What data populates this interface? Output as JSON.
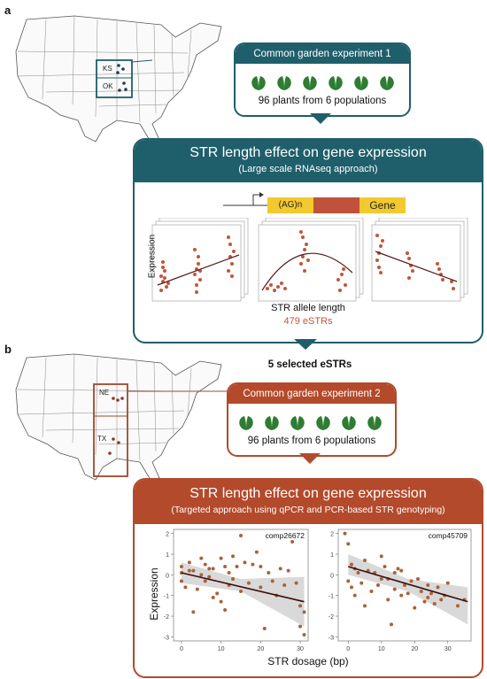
{
  "panels": {
    "a": "a",
    "b": "b"
  },
  "map_a": {
    "labels": [
      "KS",
      "OK"
    ]
  },
  "map_b": {
    "labels": [
      "NE",
      "TX"
    ]
  },
  "exp1": {
    "title": "Common garden experiment 1",
    "caption": "96 plants from 6 populations"
  },
  "rnaseq": {
    "title": "STR length effect on gene expression",
    "subtitle": "(Large scale RNAseq approach)",
    "gene_region_label": "(AG)n",
    "gene_label": "Gene",
    "ylabel": "Expression",
    "xlabel": "STR allele length",
    "count": "479 eSTRs"
  },
  "selected": "5 selected eSTRs",
  "exp2": {
    "title": "Common garden experiment 2",
    "caption": "96 plants from 6 populations"
  },
  "qpcr": {
    "title": "STR length effect on gene expression",
    "subtitle": "(Targeted approach using qPCR and PCR-based STR genotyping)",
    "ylabel": "Expression",
    "xlabel": "STR dosage (bp)"
  },
  "chart_data": [
    {
      "type": "scatter",
      "title": "comp26672",
      "xlabel": "STR dosage (bp)",
      "ylabel": "Expression",
      "xlim": [
        -2,
        32
      ],
      "ylim": [
        -3.2,
        2.2
      ],
      "x_ticks": [
        0,
        10,
        20,
        30
      ],
      "y_ticks": [
        2,
        1,
        0,
        -1,
        -2,
        -3
      ],
      "trend": [
        [
          0,
          0.1
        ],
        [
          31,
          -1.3
        ]
      ],
      "ribbon": [
        [
          0,
          0.6,
          -0.4
        ],
        [
          15,
          -0.2,
          -0.8
        ],
        [
          31,
          -0.1,
          -2.5
        ]
      ],
      "points": [
        [
          0,
          0.1
        ],
        [
          0,
          -0.3
        ],
        [
          0,
          0.4
        ],
        [
          1,
          -0.6
        ],
        [
          2,
          0.6
        ],
        [
          2,
          0.2
        ],
        [
          3,
          -1.8
        ],
        [
          3,
          0.2
        ],
        [
          4,
          -0.7
        ],
        [
          5,
          0.8
        ],
        [
          5,
          0
        ],
        [
          6,
          0.5
        ],
        [
          6,
          -0.3
        ],
        [
          7,
          -0.1
        ],
        [
          7,
          0.3
        ],
        [
          8,
          -1.1
        ],
        [
          8,
          0.3
        ],
        [
          9,
          -0.9
        ],
        [
          10,
          0.8
        ],
        [
          10,
          -1.3
        ],
        [
          11,
          0.4
        ],
        [
          11,
          -1.7
        ],
        [
          12,
          0.1
        ],
        [
          12,
          -0.5
        ],
        [
          13,
          0.9
        ],
        [
          13,
          -0.2
        ],
        [
          14,
          0.4
        ],
        [
          15,
          1.9
        ],
        [
          15,
          -0.8
        ],
        [
          16,
          0.6
        ],
        [
          17,
          -0.4
        ],
        [
          18,
          0.5
        ],
        [
          19,
          1.1
        ],
        [
          20,
          -0.6
        ],
        [
          20,
          0.4
        ],
        [
          21,
          -2.6
        ],
        [
          22,
          0.1
        ],
        [
          23,
          -0.3
        ],
        [
          24,
          -1
        ],
        [
          25,
          0.3
        ],
        [
          26,
          -0.5
        ],
        [
          27,
          0.2
        ],
        [
          28,
          1.6
        ],
        [
          29,
          -0.4
        ],
        [
          30,
          -1.5
        ],
        [
          30,
          -2.5
        ],
        [
          31,
          -1.8
        ],
        [
          31,
          -2.9
        ]
      ]
    },
    {
      "type": "scatter",
      "title": "comp45709",
      "xlabel": "STR dosage (bp)",
      "ylabel": "",
      "xlim": [
        -3,
        37
      ],
      "ylim": [
        -3.2,
        2.2
      ],
      "x_ticks": [
        0,
        10,
        20,
        30
      ],
      "y_ticks": [
        2,
        1,
        0,
        -1,
        -2,
        -3
      ],
      "trend": [
        [
          0,
          0.4
        ],
        [
          36,
          -1.3
        ]
      ],
      "ribbon": [
        [
          0,
          1,
          0
        ],
        [
          18,
          -0.2,
          -0.8
        ],
        [
          36,
          -0.6,
          -2.4
        ]
      ],
      "points": [
        [
          -1,
          2
        ],
        [
          0,
          1.5
        ],
        [
          0,
          -0.3
        ],
        [
          1,
          0.5
        ],
        [
          1,
          -0.6
        ],
        [
          2,
          0.3
        ],
        [
          2,
          -1
        ],
        [
          3,
          0.1
        ],
        [
          4,
          -0.4
        ],
        [
          5,
          0.7
        ],
        [
          5,
          -1.5
        ],
        [
          6,
          0.2
        ],
        [
          7,
          -0.8
        ],
        [
          8,
          0.1
        ],
        [
          9,
          -0.5
        ],
        [
          10,
          0.9
        ],
        [
          10,
          -0.2
        ],
        [
          11,
          0.4
        ],
        [
          12,
          -1.2
        ],
        [
          12,
          -0.2
        ],
        [
          13,
          -2.4
        ],
        [
          14,
          0.1
        ],
        [
          14,
          -0.7
        ],
        [
          15,
          0.3
        ],
        [
          16,
          -1
        ],
        [
          16,
          0.2
        ],
        [
          17,
          -0.5
        ],
        [
          18,
          -0.9
        ],
        [
          19,
          -0.3
        ],
        [
          20,
          -1.6
        ],
        [
          21,
          -0.2
        ],
        [
          22,
          -0.8
        ],
        [
          23,
          -1.3
        ],
        [
          24,
          -0.5
        ],
        [
          24,
          -1.1
        ],
        [
          25,
          -0.9
        ],
        [
          26,
          -1.4
        ],
        [
          27,
          -0.6
        ],
        [
          28,
          -1.2
        ],
        [
          29,
          -1
        ],
        [
          30,
          -0.4
        ],
        [
          33,
          -1.5
        ],
        [
          35,
          -1.2
        ]
      ]
    }
  ]
}
